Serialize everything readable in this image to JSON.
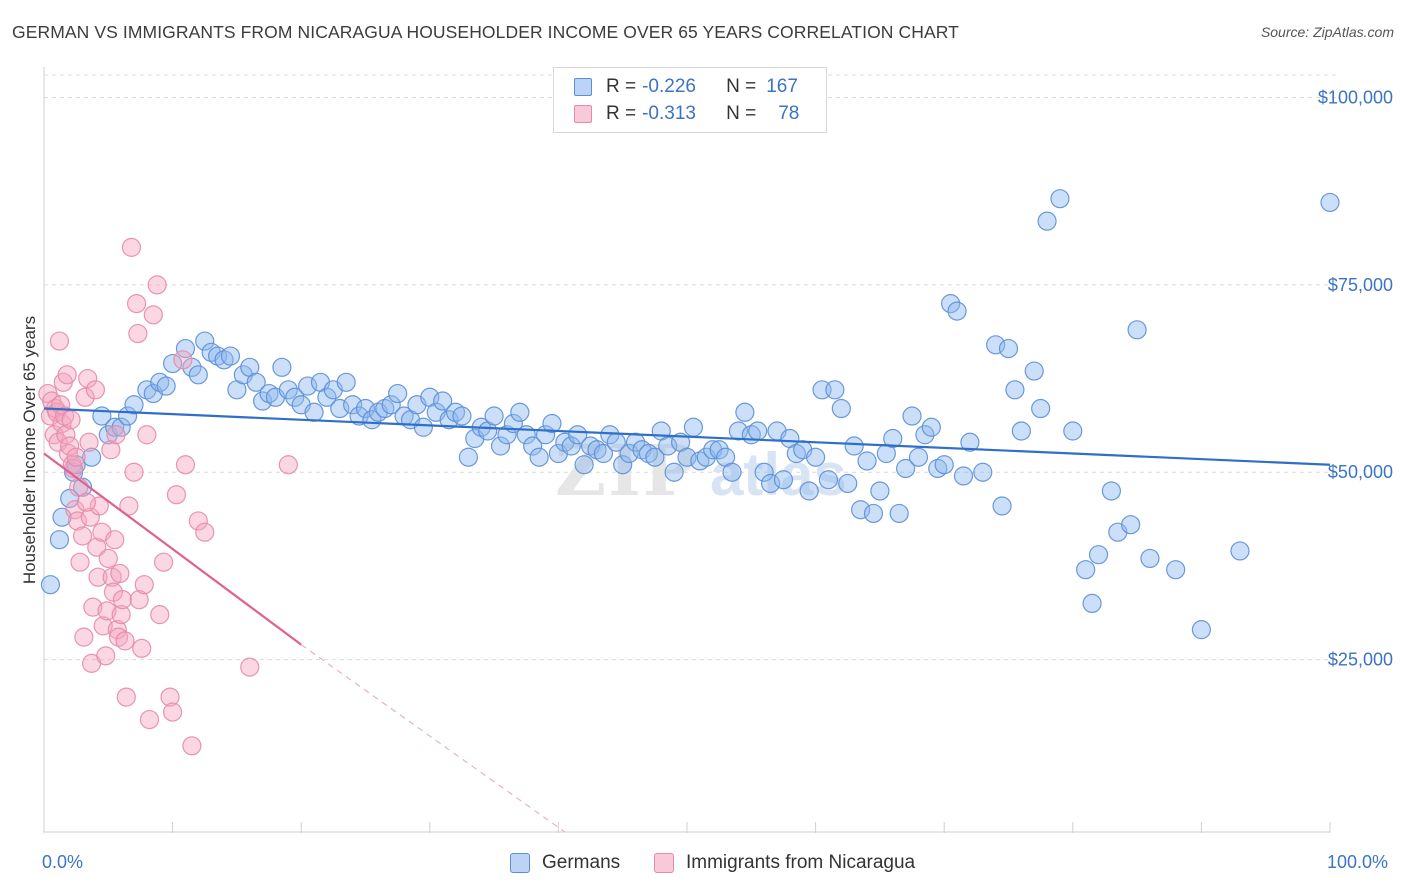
{
  "title": "GERMAN VS IMMIGRANTS FROM NICARAGUA HOUSEHOLDER INCOME OVER 65 YEARS CORRELATION CHART",
  "source": "Source: ZipAtlas.com",
  "watermark": "ZIPatlas",
  "legend": {
    "r_label": "R =",
    "n_label": "N =",
    "rows": [
      {
        "r": "-0.226",
        "n": "167",
        "color": "#8db8ef"
      },
      {
        "r": "-0.313",
        "n": "78",
        "color": "#f4a6bf"
      }
    ]
  },
  "bottom_legend": [
    "Germans",
    "Immigrants from Nicaragua"
  ],
  "chart_data": {
    "type": "scatter",
    "ylabel": "Householder Income Over 65 years",
    "xlabel": "",
    "x_tick_labels": [
      "0.0%",
      "100.0%"
    ],
    "xlim": [
      0,
      100
    ],
    "ylim": [
      2000,
      103000
    ],
    "y_ticks": [
      {
        "value": 100000,
        "label": "$100,000"
      },
      {
        "value": 75000,
        "label": "$75,000"
      },
      {
        "value": 50000,
        "label": "$50,000"
      },
      {
        "value": 25000,
        "label": "$25,000"
      }
    ],
    "grid": "horizontal dashed",
    "legend_position": "top-center",
    "series": [
      {
        "name": "Germans",
        "color": "#8db8ef",
        "edge": "#5b8fd6",
        "line_color": "#2f6fc9",
        "trend": {
          "x": [
            0,
            100
          ],
          "y": [
            58500,
            51000
          ]
        },
        "points": [
          [
            0.5,
            35000
          ],
          [
            1.2,
            41000
          ],
          [
            1.4,
            44000
          ],
          [
            2,
            46500
          ],
          [
            2.3,
            50000
          ],
          [
            2.5,
            51000
          ],
          [
            3,
            48000
          ],
          [
            3.7,
            52000
          ],
          [
            4.5,
            57500
          ],
          [
            5,
            55000
          ],
          [
            5.5,
            56000
          ],
          [
            6,
            56000
          ],
          [
            6.5,
            57500
          ],
          [
            7,
            59000
          ],
          [
            8,
            61000
          ],
          [
            8.5,
            60500
          ],
          [
            9,
            62000
          ],
          [
            9.5,
            61500
          ],
          [
            10,
            64500
          ],
          [
            11,
            66500
          ],
          [
            11.5,
            64000
          ],
          [
            12,
            63000
          ],
          [
            12.5,
            67500
          ],
          [
            13,
            66000
          ],
          [
            13.5,
            65500
          ],
          [
            14,
            65000
          ],
          [
            14.5,
            65500
          ],
          [
            15,
            61000
          ],
          [
            15.5,
            63000
          ],
          [
            16,
            64000
          ],
          [
            16.5,
            62000
          ],
          [
            17,
            59500
          ],
          [
            17.5,
            60500
          ],
          [
            18,
            60000
          ],
          [
            18.5,
            64000
          ],
          [
            19,
            61000
          ],
          [
            19.5,
            60000
          ],
          [
            20,
            59000
          ],
          [
            20.5,
            61500
          ],
          [
            21,
            58000
          ],
          [
            21.5,
            62000
          ],
          [
            22,
            60000
          ],
          [
            22.5,
            61000
          ],
          [
            23,
            58500
          ],
          [
            23.5,
            62000
          ],
          [
            24,
            59000
          ],
          [
            24.5,
            57500
          ],
          [
            25,
            58500
          ],
          [
            25.5,
            57000
          ],
          [
            26,
            58000
          ],
          [
            26.5,
            58500
          ],
          [
            27,
            59000
          ],
          [
            27.5,
            60500
          ],
          [
            28,
            57500
          ],
          [
            28.5,
            57000
          ],
          [
            29,
            59000
          ],
          [
            29.5,
            56000
          ],
          [
            30,
            60000
          ],
          [
            30.5,
            58000
          ],
          [
            31,
            59500
          ],
          [
            31.5,
            57000
          ],
          [
            32,
            58000
          ],
          [
            32.5,
            57500
          ],
          [
            33,
            52000
          ],
          [
            33.5,
            54500
          ],
          [
            34,
            56000
          ],
          [
            34.5,
            55500
          ],
          [
            35,
            57500
          ],
          [
            35.5,
            53500
          ],
          [
            36,
            55000
          ],
          [
            36.5,
            56500
          ],
          [
            37,
            58000
          ],
          [
            37.5,
            55000
          ],
          [
            38,
            53500
          ],
          [
            38.5,
            52000
          ],
          [
            39,
            55000
          ],
          [
            39.5,
            56500
          ],
          [
            40,
            52500
          ],
          [
            40.5,
            54000
          ],
          [
            41,
            53500
          ],
          [
            41.5,
            55000
          ],
          [
            42,
            51000
          ],
          [
            42.5,
            53500
          ],
          [
            43,
            53000
          ],
          [
            43.5,
            52500
          ],
          [
            44,
            55000
          ],
          [
            44.5,
            54000
          ],
          [
            45,
            51000
          ],
          [
            45.5,
            52500
          ],
          [
            46,
            54000
          ],
          [
            46.5,
            53000
          ],
          [
            47,
            52500
          ],
          [
            47.5,
            52000
          ],
          [
            48,
            55500
          ],
          [
            48.5,
            53500
          ],
          [
            49,
            50000
          ],
          [
            49.5,
            54000
          ],
          [
            50,
            52000
          ],
          [
            50.5,
            56000
          ],
          [
            51,
            51500
          ],
          [
            51.5,
            52000
          ],
          [
            52,
            53000
          ],
          [
            52.5,
            53000
          ],
          [
            53,
            52000
          ],
          [
            53.5,
            50000
          ],
          [
            54,
            55500
          ],
          [
            54.5,
            58000
          ],
          [
            55,
            55000
          ],
          [
            55.5,
            55500
          ],
          [
            56,
            50000
          ],
          [
            56.5,
            48500
          ],
          [
            57,
            55500
          ],
          [
            57.5,
            49000
          ],
          [
            58,
            54500
          ],
          [
            58.5,
            52500
          ],
          [
            59,
            53000
          ],
          [
            59.5,
            47500
          ],
          [
            60,
            52000
          ],
          [
            60.5,
            61000
          ],
          [
            61,
            49000
          ],
          [
            61.5,
            61000
          ],
          [
            62,
            58500
          ],
          [
            62.5,
            48500
          ],
          [
            63,
            53500
          ],
          [
            63.5,
            45000
          ],
          [
            64,
            51500
          ],
          [
            64.5,
            44500
          ],
          [
            65,
            47500
          ],
          [
            65.5,
            52500
          ],
          [
            66,
            54500
          ],
          [
            66.5,
            44500
          ],
          [
            67,
            50500
          ],
          [
            67.5,
            57500
          ],
          [
            68,
            52000
          ],
          [
            68.5,
            55000
          ],
          [
            69,
            56000
          ],
          [
            69.5,
            50500
          ],
          [
            70,
            51000
          ],
          [
            70.5,
            72500
          ],
          [
            71,
            71500
          ],
          [
            71.5,
            49500
          ],
          [
            72,
            54000
          ],
          [
            73,
            50000
          ],
          [
            74,
            67000
          ],
          [
            74.5,
            45500
          ],
          [
            75,
            66500
          ],
          [
            75.5,
            61000
          ],
          [
            76,
            55500
          ],
          [
            77,
            63500
          ],
          [
            77.5,
            58500
          ],
          [
            78,
            83500
          ],
          [
            79,
            86500
          ],
          [
            80,
            55500
          ],
          [
            81,
            37000
          ],
          [
            81.5,
            32500
          ],
          [
            82,
            39000
          ],
          [
            83,
            47500
          ],
          [
            83.5,
            42000
          ],
          [
            84.5,
            43000
          ],
          [
            85,
            69000
          ],
          [
            86,
            38500
          ],
          [
            88,
            37000
          ],
          [
            90,
            29000
          ],
          [
            93,
            39500
          ],
          [
            100,
            86000
          ]
        ]
      },
      {
        "name": "Immigrants from Nicaragua",
        "color": "#f4a6bf",
        "edge": "#e58aa9",
        "line_color": "#e06090",
        "trend": {
          "x": [
            0,
            20
          ],
          "y": [
            52500,
            27000
          ]
        },
        "trend_dash": {
          "x": [
            20,
            40.5
          ],
          "y": [
            27000,
            2000
          ]
        },
        "points": [
          [
            0.3,
            60500
          ],
          [
            0.5,
            57500
          ],
          [
            0.6,
            59500
          ],
          [
            0.8,
            55000
          ],
          [
            0.9,
            58500
          ],
          [
            1,
            58000
          ],
          [
            1.1,
            54000
          ],
          [
            1.2,
            67500
          ],
          [
            1.3,
            59000
          ],
          [
            1.4,
            56500
          ],
          [
            1.5,
            62000
          ],
          [
            1.6,
            57500
          ],
          [
            1.7,
            55000
          ],
          [
            1.8,
            63000
          ],
          [
            1.9,
            52500
          ],
          [
            2,
            53500
          ],
          [
            2.1,
            57000
          ],
          [
            2.2,
            51000
          ],
          [
            2.3,
            50500
          ],
          [
            2.4,
            45000
          ],
          [
            2.5,
            52000
          ],
          [
            2.6,
            43500
          ],
          [
            2.7,
            48000
          ],
          [
            2.8,
            38000
          ],
          [
            3,
            41500
          ],
          [
            3.1,
            28000
          ],
          [
            3.2,
            60000
          ],
          [
            3.4,
            62500
          ],
          [
            3.5,
            54000
          ],
          [
            3.6,
            44000
          ],
          [
            3.7,
            24500
          ],
          [
            3.8,
            32000
          ],
          [
            4,
            61000
          ],
          [
            4.1,
            40000
          ],
          [
            4.2,
            36000
          ],
          [
            4.3,
            45500
          ],
          [
            4.5,
            42000
          ],
          [
            4.6,
            29500
          ],
          [
            4.8,
            25500
          ],
          [
            4.9,
            31500
          ],
          [
            5,
            38500
          ],
          [
            5.2,
            53000
          ],
          [
            5.3,
            36000
          ],
          [
            5.4,
            34000
          ],
          [
            5.5,
            41000
          ],
          [
            5.6,
            55000
          ],
          [
            5.7,
            29000
          ],
          [
            5.8,
            28000
          ],
          [
            5.9,
            36500
          ],
          [
            6,
            31000
          ],
          [
            6.1,
            33000
          ],
          [
            6.3,
            27500
          ],
          [
            6.4,
            20000
          ],
          [
            6.6,
            45500
          ],
          [
            6.8,
            80000
          ],
          [
            7,
            50000
          ],
          [
            7.2,
            72500
          ],
          [
            7.3,
            68500
          ],
          [
            7.4,
            33000
          ],
          [
            7.6,
            26500
          ],
          [
            7.8,
            35000
          ],
          [
            8,
            55000
          ],
          [
            8.2,
            17000
          ],
          [
            8.5,
            71000
          ],
          [
            8.8,
            75000
          ],
          [
            9,
            31000
          ],
          [
            9.3,
            38000
          ],
          [
            9.8,
            20000
          ],
          [
            10,
            18000
          ],
          [
            10.3,
            47000
          ],
          [
            10.8,
            65000
          ],
          [
            11,
            51000
          ],
          [
            11.5,
            13500
          ],
          [
            12,
            43500
          ],
          [
            12.5,
            42000
          ],
          [
            16,
            24000
          ],
          [
            19,
            51000
          ],
          [
            3.3,
            46000
          ]
        ]
      }
    ]
  }
}
